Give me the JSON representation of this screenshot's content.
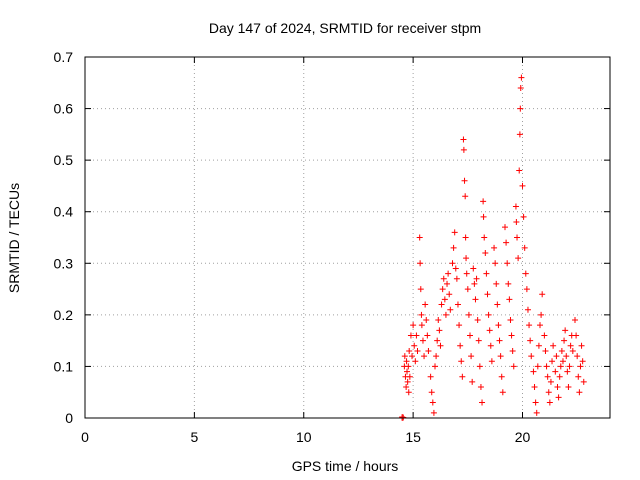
{
  "chart_data": {
    "type": "scatter",
    "title": "Day 147 of 2024, SRMTID for receiver stpm",
    "xlabel": "GPS time / hours",
    "ylabel": "SRMTID / TECUs",
    "xlim": [
      0,
      24
    ],
    "ylim": [
      0,
      0.7
    ],
    "xticks": [
      0,
      5,
      10,
      15,
      20
    ],
    "yticks": [
      0,
      0.1,
      0.2,
      0.3,
      0.4,
      0.5,
      0.6,
      0.7
    ],
    "xtick_labels": [
      "0",
      "5",
      "10",
      "15",
      "20"
    ],
    "ytick_labels": [
      "0",
      "0.1",
      "0.2",
      "0.3",
      "0.4",
      "0.5",
      "0.6",
      "0.7"
    ],
    "grid": true,
    "marker": "+",
    "color": "#ff0000",
    "series": [
      {
        "name": "SRMTID",
        "points": [
          [
            14.5,
            0.0
          ],
          [
            14.5,
            0.002
          ],
          [
            14.55,
            0.001
          ],
          [
            14.6,
            0.1
          ],
          [
            14.62,
            0.12
          ],
          [
            14.65,
            0.08
          ],
          [
            14.68,
            0.06
          ],
          [
            14.7,
            0.11
          ],
          [
            14.72,
            0.09
          ],
          [
            14.75,
            0.07
          ],
          [
            14.78,
            0.1
          ],
          [
            14.8,
            0.05
          ],
          [
            14.82,
            0.13
          ],
          [
            14.85,
            0.08
          ],
          [
            14.9,
            0.16
          ],
          [
            14.95,
            0.12
          ],
          [
            15.0,
            0.18
          ],
          [
            15.05,
            0.14
          ],
          [
            15.1,
            0.11
          ],
          [
            15.15,
            0.16
          ],
          [
            15.2,
            0.13
          ],
          [
            15.3,
            0.35
          ],
          [
            15.32,
            0.3
          ],
          [
            15.35,
            0.25
          ],
          [
            15.38,
            0.2
          ],
          [
            15.4,
            0.18
          ],
          [
            15.45,
            0.15
          ],
          [
            15.5,
            0.12
          ],
          [
            15.55,
            0.22
          ],
          [
            15.6,
            0.19
          ],
          [
            15.65,
            0.16
          ],
          [
            15.7,
            0.13
          ],
          [
            15.8,
            0.08
          ],
          [
            15.85,
            0.05
          ],
          [
            15.9,
            0.03
          ],
          [
            15.95,
            0.01
          ],
          [
            16.0,
            0.1
          ],
          [
            16.05,
            0.12
          ],
          [
            16.1,
            0.15
          ],
          [
            16.15,
            0.19
          ],
          [
            16.2,
            0.17
          ],
          [
            16.25,
            0.14
          ],
          [
            16.3,
            0.22
          ],
          [
            16.35,
            0.25
          ],
          [
            16.4,
            0.27
          ],
          [
            16.45,
            0.23
          ],
          [
            16.5,
            0.2
          ],
          [
            16.55,
            0.26
          ],
          [
            16.6,
            0.28
          ],
          [
            16.65,
            0.24
          ],
          [
            16.7,
            0.21
          ],
          [
            16.8,
            0.3
          ],
          [
            16.85,
            0.33
          ],
          [
            16.9,
            0.36
          ],
          [
            16.95,
            0.29
          ],
          [
            17.0,
            0.27
          ],
          [
            17.05,
            0.22
          ],
          [
            17.1,
            0.18
          ],
          [
            17.15,
            0.14
          ],
          [
            17.2,
            0.11
          ],
          [
            17.25,
            0.08
          ],
          [
            17.3,
            0.54
          ],
          [
            17.32,
            0.52
          ],
          [
            17.35,
            0.46
          ],
          [
            17.38,
            0.43
          ],
          [
            17.4,
            0.35
          ],
          [
            17.42,
            0.31
          ],
          [
            17.45,
            0.28
          ],
          [
            17.5,
            0.25
          ],
          [
            17.55,
            0.2
          ],
          [
            17.6,
            0.16
          ],
          [
            17.65,
            0.12
          ],
          [
            17.7,
            0.07
          ],
          [
            17.75,
            0.29
          ],
          [
            17.8,
            0.26
          ],
          [
            17.85,
            0.23
          ],
          [
            17.9,
            0.27
          ],
          [
            17.95,
            0.19
          ],
          [
            18.0,
            0.15
          ],
          [
            18.05,
            0.1
          ],
          [
            18.1,
            0.06
          ],
          [
            18.15,
            0.03
          ],
          [
            18.2,
            0.42
          ],
          [
            18.22,
            0.39
          ],
          [
            18.25,
            0.35
          ],
          [
            18.3,
            0.32
          ],
          [
            18.35,
            0.28
          ],
          [
            18.4,
            0.24
          ],
          [
            18.45,
            0.2
          ],
          [
            18.5,
            0.17
          ],
          [
            18.55,
            0.14
          ],
          [
            18.6,
            0.11
          ],
          [
            18.7,
            0.33
          ],
          [
            18.75,
            0.3
          ],
          [
            18.8,
            0.26
          ],
          [
            18.85,
            0.22
          ],
          [
            18.9,
            0.18
          ],
          [
            18.95,
            0.15
          ],
          [
            19.0,
            0.12
          ],
          [
            19.05,
            0.08
          ],
          [
            19.1,
            0.05
          ],
          [
            19.2,
            0.37
          ],
          [
            19.25,
            0.34
          ],
          [
            19.3,
            0.3
          ],
          [
            19.35,
            0.26
          ],
          [
            19.4,
            0.23
          ],
          [
            19.45,
            0.19
          ],
          [
            19.5,
            0.16
          ],
          [
            19.55,
            0.13
          ],
          [
            19.6,
            0.1
          ],
          [
            19.7,
            0.41
          ],
          [
            19.72,
            0.38
          ],
          [
            19.75,
            0.35
          ],
          [
            19.8,
            0.31
          ],
          [
            19.85,
            0.48
          ],
          [
            19.88,
            0.55
          ],
          [
            19.9,
            0.6
          ],
          [
            19.92,
            0.64
          ],
          [
            19.95,
            0.66
          ],
          [
            20.0,
            0.45
          ],
          [
            20.05,
            0.39
          ],
          [
            20.1,
            0.33
          ],
          [
            20.15,
            0.28
          ],
          [
            20.2,
            0.25
          ],
          [
            20.25,
            0.21
          ],
          [
            20.3,
            0.18
          ],
          [
            20.35,
            0.15
          ],
          [
            20.4,
            0.12
          ],
          [
            20.5,
            0.09
          ],
          [
            20.55,
            0.06
          ],
          [
            20.6,
            0.03
          ],
          [
            20.65,
            0.01
          ],
          [
            20.7,
            0.1
          ],
          [
            20.75,
            0.14
          ],
          [
            20.8,
            0.18
          ],
          [
            20.85,
            0.2
          ],
          [
            20.9,
            0.24
          ],
          [
            21.0,
            0.16
          ],
          [
            21.05,
            0.13
          ],
          [
            21.1,
            0.1
          ],
          [
            21.15,
            0.08
          ],
          [
            21.2,
            0.05
          ],
          [
            21.25,
            0.03
          ],
          [
            21.3,
            0.07
          ],
          [
            21.35,
            0.11
          ],
          [
            21.4,
            0.14
          ],
          [
            21.5,
            0.09
          ],
          [
            21.55,
            0.12
          ],
          [
            21.6,
            0.06
          ],
          [
            21.65,
            0.04
          ],
          [
            21.7,
            0.08
          ],
          [
            21.75,
            0.1
          ],
          [
            21.8,
            0.13
          ],
          [
            21.85,
            0.11
          ],
          [
            21.9,
            0.15
          ],
          [
            21.95,
            0.17
          ],
          [
            22.0,
            0.12
          ],
          [
            22.05,
            0.09
          ],
          [
            22.1,
            0.06
          ],
          [
            22.15,
            0.1
          ],
          [
            22.2,
            0.14
          ],
          [
            22.25,
            0.16
          ],
          [
            22.3,
            0.13
          ],
          [
            22.4,
            0.19
          ],
          [
            22.45,
            0.16
          ],
          [
            22.5,
            0.12
          ],
          [
            22.55,
            0.08
          ],
          [
            22.6,
            0.05
          ],
          [
            22.65,
            0.1
          ],
          [
            22.7,
            0.14
          ],
          [
            22.75,
            0.11
          ],
          [
            22.8,
            0.07
          ]
        ]
      }
    ]
  }
}
